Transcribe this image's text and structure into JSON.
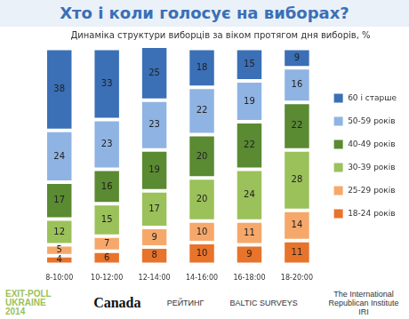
{
  "chart_data": {
    "type": "bar",
    "stacked": true,
    "title": "Хто і коли голосує на виборах?",
    "subtitle": "Динаміка структури виборців за віком протягом дня виборів, %",
    "categories": [
      "8-10:00",
      "10-12:00",
      "12-14:00",
      "14-16:00",
      "16-18:00",
      "18-20:00"
    ],
    "series": [
      {
        "name": "18-24 років",
        "color": "#e8732a",
        "values": [
          4,
          6,
          8,
          10,
          9,
          11
        ]
      },
      {
        "name": "25-29 років",
        "color": "#f6a86a",
        "values": [
          5,
          7,
          9,
          10,
          11,
          14
        ]
      },
      {
        "name": "30-39 років",
        "color": "#9bc15a",
        "values": [
          12,
          15,
          17,
          20,
          24,
          28
        ]
      },
      {
        "name": "40-49 років",
        "color": "#5a8a32",
        "values": [
          17,
          16,
          19,
          20,
          22,
          22
        ]
      },
      {
        "name": "50-59 років",
        "color": "#8fb4e3",
        "values": [
          24,
          23,
          23,
          22,
          19,
          16
        ]
      },
      {
        "name": "60 і старше",
        "color": "#3b6fb6",
        "values": [
          38,
          33,
          25,
          18,
          15,
          9
        ]
      }
    ],
    "ylim": [
      0,
      101
    ],
    "data_labels": true,
    "legend": "right",
    "tick_labels": "x",
    "grid": false
  },
  "footer": [
    "EXIT-POLL UKRAINE 2014",
    "Canada",
    "РЕЙТИНГ",
    "BALTIC SURVEYS",
    "The International Republican Institute IRI"
  ]
}
